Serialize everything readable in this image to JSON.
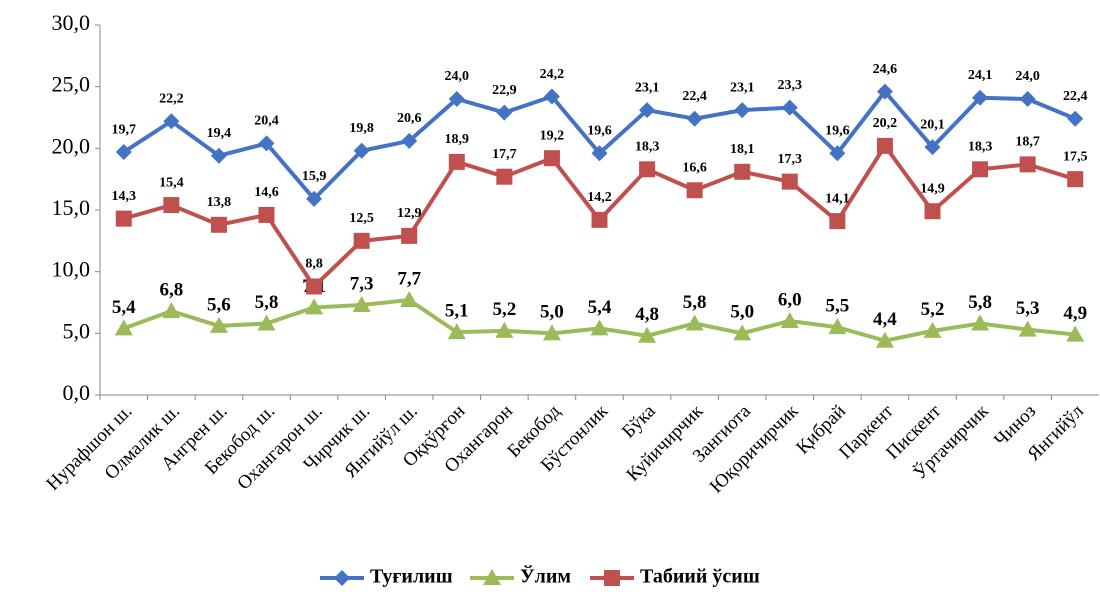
{
  "chart_data": {
    "type": "line",
    "categories": [
      "Нурафшон ш.",
      "Олмалик ш.",
      "Ангрен ш.",
      "Бекобод ш.",
      "Охангарон ш.",
      "Чирчик ш.",
      "Янгийўл ш.",
      "Оққўрғон",
      "Охангарон",
      "Бекобод",
      "Бўстонлик",
      "Бўка",
      "Куйичирчик",
      "Зангиота",
      "Юқоричирчик",
      "Қибрай",
      "Паркент",
      "Пискент",
      "Ўртачирчик",
      "Чиноз",
      "Янгийўл"
    ],
    "series": [
      {
        "name": "Туғилиш",
        "color": "#4472c4",
        "marker": "diamond",
        "values": [
          19.7,
          22.2,
          19.4,
          20.4,
          15.9,
          19.8,
          20.6,
          24.0,
          22.9,
          24.2,
          19.6,
          23.1,
          22.4,
          23.1,
          23.3,
          19.6,
          24.6,
          20.1,
          24.1,
          24.0,
          22.4
        ],
        "value_labels": [
          "19,7",
          "22,2",
          "19,4",
          "20,4",
          "15,9",
          "19,8",
          "20,6",
          "24,0",
          "22,9",
          "24,2",
          "19,6",
          "23,1",
          "22,4",
          "23,1",
          "23,3",
          "19,6",
          "24,6",
          "20,1",
          "24,1",
          "24,0",
          "22,4"
        ]
      },
      {
        "name": "Ўлим",
        "color": "#9bbb59",
        "marker": "triangle",
        "values": [
          5.4,
          6.8,
          5.6,
          5.8,
          7.1,
          7.3,
          7.7,
          5.1,
          5.2,
          5.0,
          5.4,
          4.8,
          5.8,
          5.0,
          6.0,
          5.5,
          4.4,
          5.2,
          5.8,
          5.3,
          4.9
        ],
        "value_labels": [
          "5,4",
          "6,8",
          "5,6",
          "5,8",
          "7,1",
          "7,3",
          "7,7",
          "5,1",
          "5,2",
          "5,0",
          "5,4",
          "4,8",
          "5,8",
          "5,0",
          "6,0",
          "5,5",
          "4,4",
          "5,2",
          "5,8",
          "5,3",
          "4,9"
        ]
      },
      {
        "name": "Табиий ўсиш",
        "color": "#c0504d",
        "marker": "square",
        "values": [
          14.3,
          15.4,
          13.8,
          14.6,
          8.8,
          12.5,
          12.9,
          18.9,
          17.7,
          19.2,
          14.2,
          18.3,
          16.6,
          18.1,
          17.3,
          14.1,
          20.2,
          14.9,
          18.3,
          18.7,
          17.5
        ],
        "value_labels": [
          "14,3",
          "15,4",
          "13,8",
          "14,6",
          "8,8",
          "12,5",
          "12,9",
          "18,9",
          "17,7",
          "19,2",
          "14,2",
          "18,3",
          "16,6",
          "18,1",
          "17,3",
          "14,1",
          "20,2",
          "14,9",
          "18,3",
          "18,7",
          "17,5"
        ]
      }
    ],
    "ylim": [
      0,
      30
    ],
    "yticks": [
      {
        "value": 0,
        "label": "0,0"
      },
      {
        "value": 5,
        "label": "5,0"
      },
      {
        "value": 10,
        "label": "10,0"
      },
      {
        "value": 15,
        "label": "15,0"
      },
      {
        "value": 20,
        "label": "20,0"
      },
      {
        "value": 25,
        "label": "25,0"
      },
      {
        "value": 30,
        "label": "30,0"
      }
    ],
    "legend": "bottom"
  }
}
